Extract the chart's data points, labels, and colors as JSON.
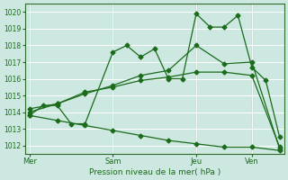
{
  "background_color": "#cce8e0",
  "grid_color": "#ffffff",
  "line_color": "#1a6b1a",
  "xlabel": "Pression niveau de la mer( hPa )",
  "ylim": [
    1011.5,
    1020.5
  ],
  "yticks": [
    1012,
    1013,
    1014,
    1015,
    1016,
    1017,
    1018,
    1019,
    1020
  ],
  "xtick_labels": [
    "Mer",
    "Sam",
    "Jeu",
    "Ven"
  ],
  "xtick_positions": [
    0,
    36,
    72,
    96
  ],
  "total_points": 108,
  "series1_x": [
    0,
    6,
    12,
    18,
    24,
    36,
    42,
    48,
    54,
    60,
    66,
    72,
    78,
    84,
    90,
    96,
    102,
    108
  ],
  "series1_y": [
    1013.8,
    1014.4,
    1014.4,
    1013.3,
    1013.3,
    1017.6,
    1018.0,
    1017.3,
    1017.8,
    1016.0,
    1016.0,
    1019.9,
    1019.1,
    1019.1,
    1019.8,
    1016.7,
    1015.9,
    1012.5
  ],
  "series2_x": [
    0,
    12,
    24,
    36,
    48,
    60,
    72,
    84,
    96,
    108
  ],
  "series2_y": [
    1014.2,
    1014.5,
    1015.2,
    1015.5,
    1015.9,
    1016.1,
    1016.4,
    1016.4,
    1016.2,
    1011.9
  ],
  "series3_x": [
    0,
    12,
    24,
    36,
    48,
    60,
    72,
    84,
    96,
    108
  ],
  "series3_y": [
    1014.0,
    1014.5,
    1015.1,
    1015.6,
    1016.2,
    1016.5,
    1018.0,
    1016.9,
    1017.0,
    1011.8
  ],
  "series4_x": [
    0,
    12,
    24,
    36,
    48,
    60,
    72,
    84,
    96,
    108
  ],
  "series4_y": [
    1013.8,
    1013.5,
    1013.2,
    1012.9,
    1012.6,
    1012.3,
    1012.1,
    1011.9,
    1011.9,
    1011.7
  ],
  "vline_positions": [
    0,
    36,
    72,
    96
  ],
  "vline_color": "#2d6b2d",
  "spine_color": "#2d6b2d"
}
